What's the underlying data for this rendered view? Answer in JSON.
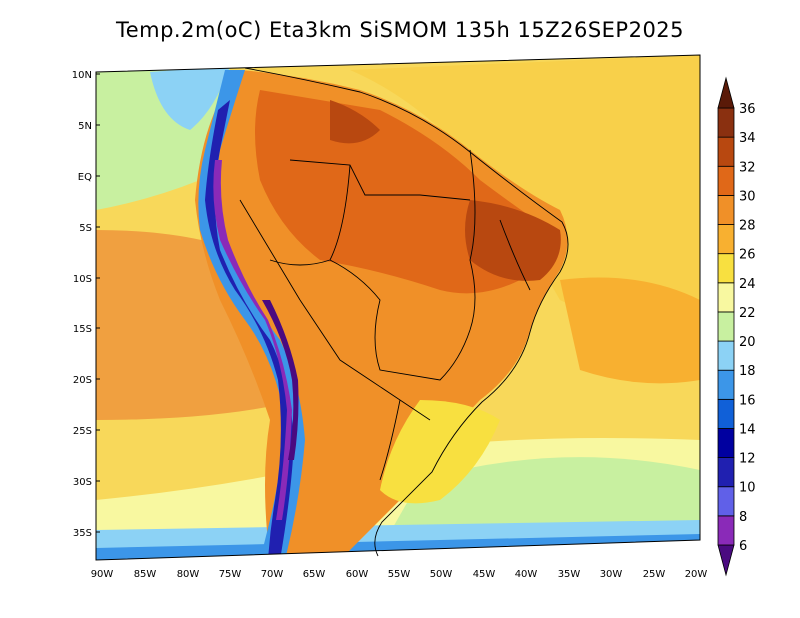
{
  "title": "Temp.2m(oC) Eta3km SiSMOM 135h 15Z26SEP2025",
  "lat_labels": [
    "10N",
    "5N",
    "EQ",
    "5S",
    "10S",
    "15S",
    "20S",
    "25S",
    "30S",
    "35S"
  ],
  "lon_labels": [
    "90W",
    "85W",
    "80W",
    "75W",
    "70W",
    "65W",
    "60W",
    "55W",
    "50W",
    "45W",
    "40W",
    "35W",
    "30W",
    "25W",
    "20W"
  ],
  "colorbar": {
    "labels": [
      "6",
      "8",
      "10",
      "12",
      "14",
      "16",
      "18",
      "20",
      "22",
      "24",
      "26",
      "28",
      "30",
      "32",
      "34",
      "36"
    ],
    "colors": [
      "#4a0a80",
      "#8a2ab8",
      "#6060e8",
      "#2020b0",
      "#0000a0",
      "#1060d8",
      "#3c96e8",
      "#8cd2f5",
      "#c8f0a0",
      "#f8f8a0",
      "#f8e040",
      "#f8b030",
      "#f09028",
      "#e06818",
      "#b84810",
      "#8a3010",
      "#5a1a08"
    ]
  },
  "map": {
    "projection_note_colors": {
      "ocean_warm": "#f0a040",
      "ocean_mild": "#f8e070",
      "ocean_cool": "#c8f0a0",
      "land_hot": "#e07820",
      "andes_cold": "#4040c0"
    }
  }
}
